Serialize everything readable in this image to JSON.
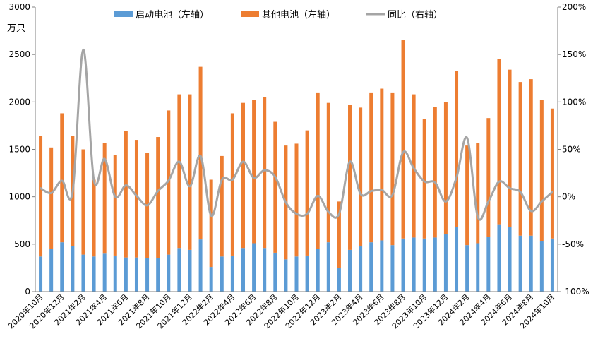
{
  "chart_data": {
    "type": "bar",
    "stacked": true,
    "unit_left": "万只",
    "categories": [
      "2020年10月",
      "2020年11月",
      "2020年12月",
      "2021年1月",
      "2021年2月",
      "2021年3月",
      "2021年4月",
      "2021年5月",
      "2021年6月",
      "2021年7月",
      "2021年8月",
      "2021年9月",
      "2021年10月",
      "2021年11月",
      "2021年12月",
      "2022年1月",
      "2022年2月",
      "2022年3月",
      "2022年4月",
      "2022年5月",
      "2022年6月",
      "2022年7月",
      "2022年8月",
      "2022年9月",
      "2022年10月",
      "2022年11月",
      "2022年12月",
      "2023年1月",
      "2023年2月",
      "2023年3月",
      "2023年4月",
      "2023年5月",
      "2023年6月",
      "2023年7月",
      "2023年8月",
      "2023年9月",
      "2023年10月",
      "2023年11月",
      "2023年12月",
      "2024年1月",
      "2024年2月",
      "2024年3月",
      "2024年4月",
      "2024年5月",
      "2024年6月",
      "2024年7月",
      "2024年8月",
      "2024年9月",
      "2024年10月"
    ],
    "x_tick_labels": [
      "2020年10月",
      "2020年12月",
      "2021年2月",
      "2021年4月",
      "2021年6月",
      "2021年8月",
      "2021年10月",
      "2021年12月",
      "2022年2月",
      "2022年4月",
      "2022年6月",
      "2022年8月",
      "2022年10月",
      "2022年12月",
      "2023年2月",
      "2023年4月",
      "2023年6月",
      "2023年8月",
      "2023年10月",
      "2023年12月",
      "2024年2月",
      "2024年4月",
      "2024年6月",
      "2024年8月",
      "2024年10月"
    ],
    "series": [
      {
        "name": "启动电池（左轴）",
        "axis": "left",
        "color": "#5B9BD5",
        "values": [
          370,
          450,
          520,
          480,
          390,
          370,
          400,
          380,
          360,
          360,
          350,
          350,
          390,
          460,
          440,
          550,
          260,
          370,
          380,
          460,
          510,
          460,
          410,
          340,
          370,
          380,
          450,
          520,
          250,
          440,
          480,
          520,
          540,
          490,
          560,
          570,
          560,
          570,
          610,
          680,
          490,
          510,
          580,
          710,
          680,
          590,
          590,
          530,
          560
        ]
      },
      {
        "name": "其他电池（左轴）",
        "axis": "left",
        "color": "#ED7D31",
        "values": [
          1270,
          1070,
          1360,
          1160,
          1110,
          810,
          1170,
          1060,
          1330,
          1240,
          1110,
          1280,
          1520,
          1620,
          1640,
          1820,
          920,
          1060,
          1500,
          1530,
          1510,
          1590,
          1380,
          1200,
          1190,
          1320,
          1650,
          1470,
          700,
          1530,
          1460,
          1580,
          1600,
          1610,
          2090,
          1510,
          1260,
          1380,
          1390,
          1650,
          1050,
          1060,
          1250,
          1740,
          1660,
          1620,
          1650,
          1490,
          1370
        ]
      },
      {
        "name": "同比（右轴）",
        "axis": "right",
        "type": "line",
        "color": "#A5A5A5",
        "values": [
          9,
          4,
          17,
          5,
          155,
          17,
          40,
          0,
          12,
          1,
          -9,
          6,
          17,
          37,
          11,
          43,
          -20,
          18,
          18,
          37,
          20,
          28,
          21,
          -6,
          -18,
          -18,
          1,
          -16,
          -18,
          37,
          3,
          6,
          7,
          2,
          47,
          30,
          16,
          15,
          -5,
          20,
          62,
          -21,
          -5,
          16,
          9,
          5,
          -15,
          -5,
          5
        ]
      }
    ],
    "ylim_left": [
      0,
      3000
    ],
    "yticks_left": [
      0,
      500,
      1000,
      1500,
      2000,
      2500,
      3000
    ],
    "ylim_right": [
      -100,
      200
    ],
    "yticks_right": [
      "-100%",
      "-50%",
      "0%",
      "50%",
      "100%",
      "150%",
      "200%"
    ],
    "yticks_right_values": [
      -100,
      -50,
      0,
      50,
      100,
      150,
      200
    ],
    "legend_position": "top",
    "grid": false
  }
}
